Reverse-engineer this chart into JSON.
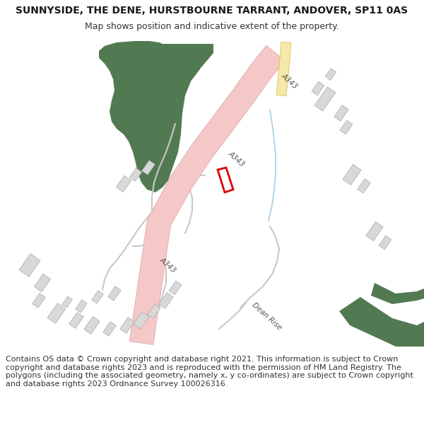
{
  "title": "SUNNYSIDE, THE DENE, HURSTBOURNE TARRANT, ANDOVER, SP11 0AS",
  "subtitle": "Map shows position and indicative extent of the property.",
  "footer": "Contains OS data © Crown copyright and database right 2021. This information is subject to Crown copyright and database rights 2023 and is reproduced with the permission of HM Land Registry. The polygons (including the associated geometry, namely x, y co-ordinates) are subject to Crown copyright and database rights 2023 Ordnance Survey 100026316.",
  "bg_color": "#ffffff",
  "map_bg": "#f8f8f6",
  "road_pink_face": "#f5c8c8",
  "road_pink_edge": "#dda0a0",
  "road_yellow_face": "#f5e8a8",
  "road_yellow_edge": "#d4b840",
  "green_dark": "#527a52",
  "building_face": "#d8d8d8",
  "building_edge": "#aaaaaa",
  "path_color": "#c8c8c8",
  "stream_color": "#a8cce0",
  "plot_red": "#dd0000",
  "label_gray": "#555555",
  "title_fontsize": 10,
  "subtitle_fontsize": 9,
  "footer_fontsize": 8.0
}
